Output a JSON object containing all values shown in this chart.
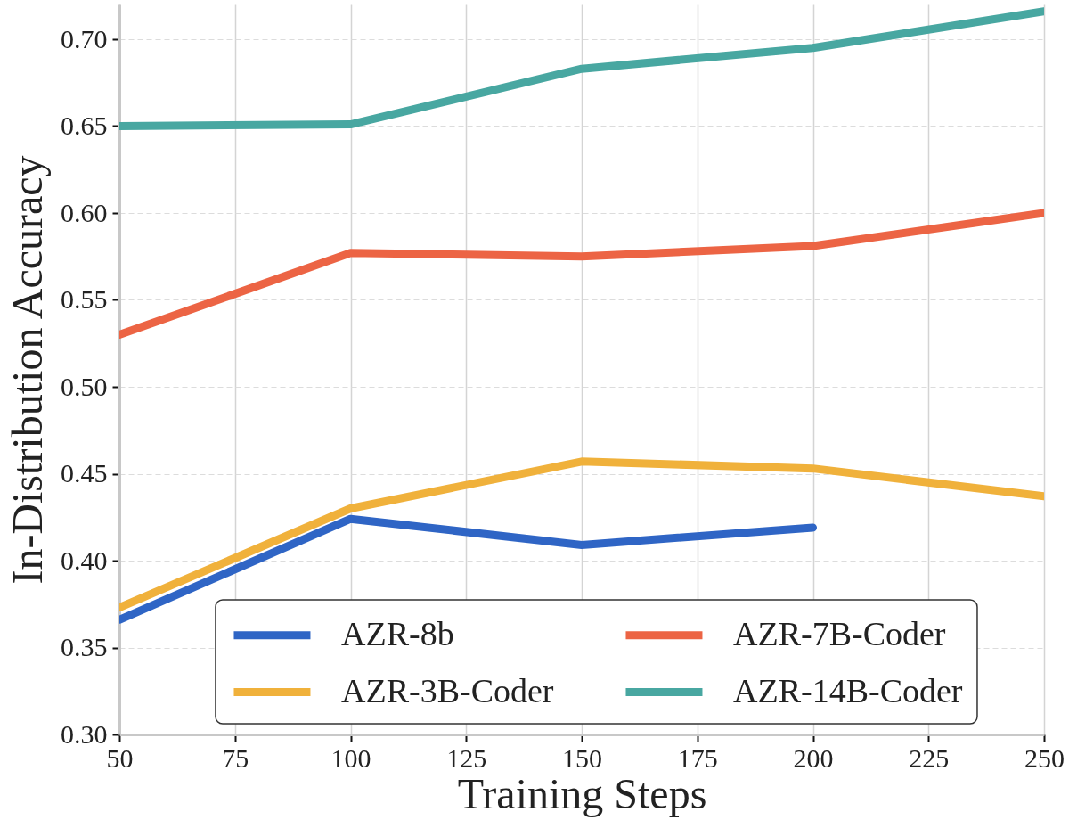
{
  "chart_data": {
    "type": "line",
    "xlabel": "Training Steps",
    "ylabel": "In-Distribution Accuracy",
    "x": [
      50,
      100,
      150,
      200,
      250
    ],
    "series": [
      {
        "name": "AZR-8b",
        "color": "#2f65c5",
        "values": [
          0.366,
          0.424,
          0.409,
          0.419,
          null
        ]
      },
      {
        "name": "AZR-3B-Coder",
        "color": "#f0b13b",
        "values": [
          0.373,
          0.43,
          0.457,
          0.453,
          0.437
        ]
      },
      {
        "name": "AZR-7B-Coder",
        "color": "#ec6444",
        "values": [
          0.53,
          0.577,
          0.575,
          0.581,
          0.6
        ]
      },
      {
        "name": "AZR-14B-Coder",
        "color": "#48a7a1",
        "values": [
          0.65,
          0.651,
          0.683,
          0.695,
          0.716
        ]
      }
    ],
    "xlim": [
      50,
      250
    ],
    "xticks": [
      50,
      75,
      100,
      125,
      150,
      175,
      200,
      225,
      250
    ],
    "ylim": [
      0.3,
      0.72
    ],
    "yticks": [
      {
        "value": 0.3,
        "label": "0.30"
      },
      {
        "value": 0.35,
        "label": "0.35"
      },
      {
        "value": 0.4,
        "label": "0.40"
      },
      {
        "value": 0.45,
        "label": "0.45"
      },
      {
        "value": 0.5,
        "label": "0.50"
      },
      {
        "value": 0.55,
        "label": "0.55"
      },
      {
        "value": 0.6,
        "label": "0.60"
      },
      {
        "value": 0.65,
        "label": "0.65"
      },
      {
        "value": 0.7,
        "label": "0.70"
      }
    ],
    "grid": true,
    "legend": "bottom"
  }
}
